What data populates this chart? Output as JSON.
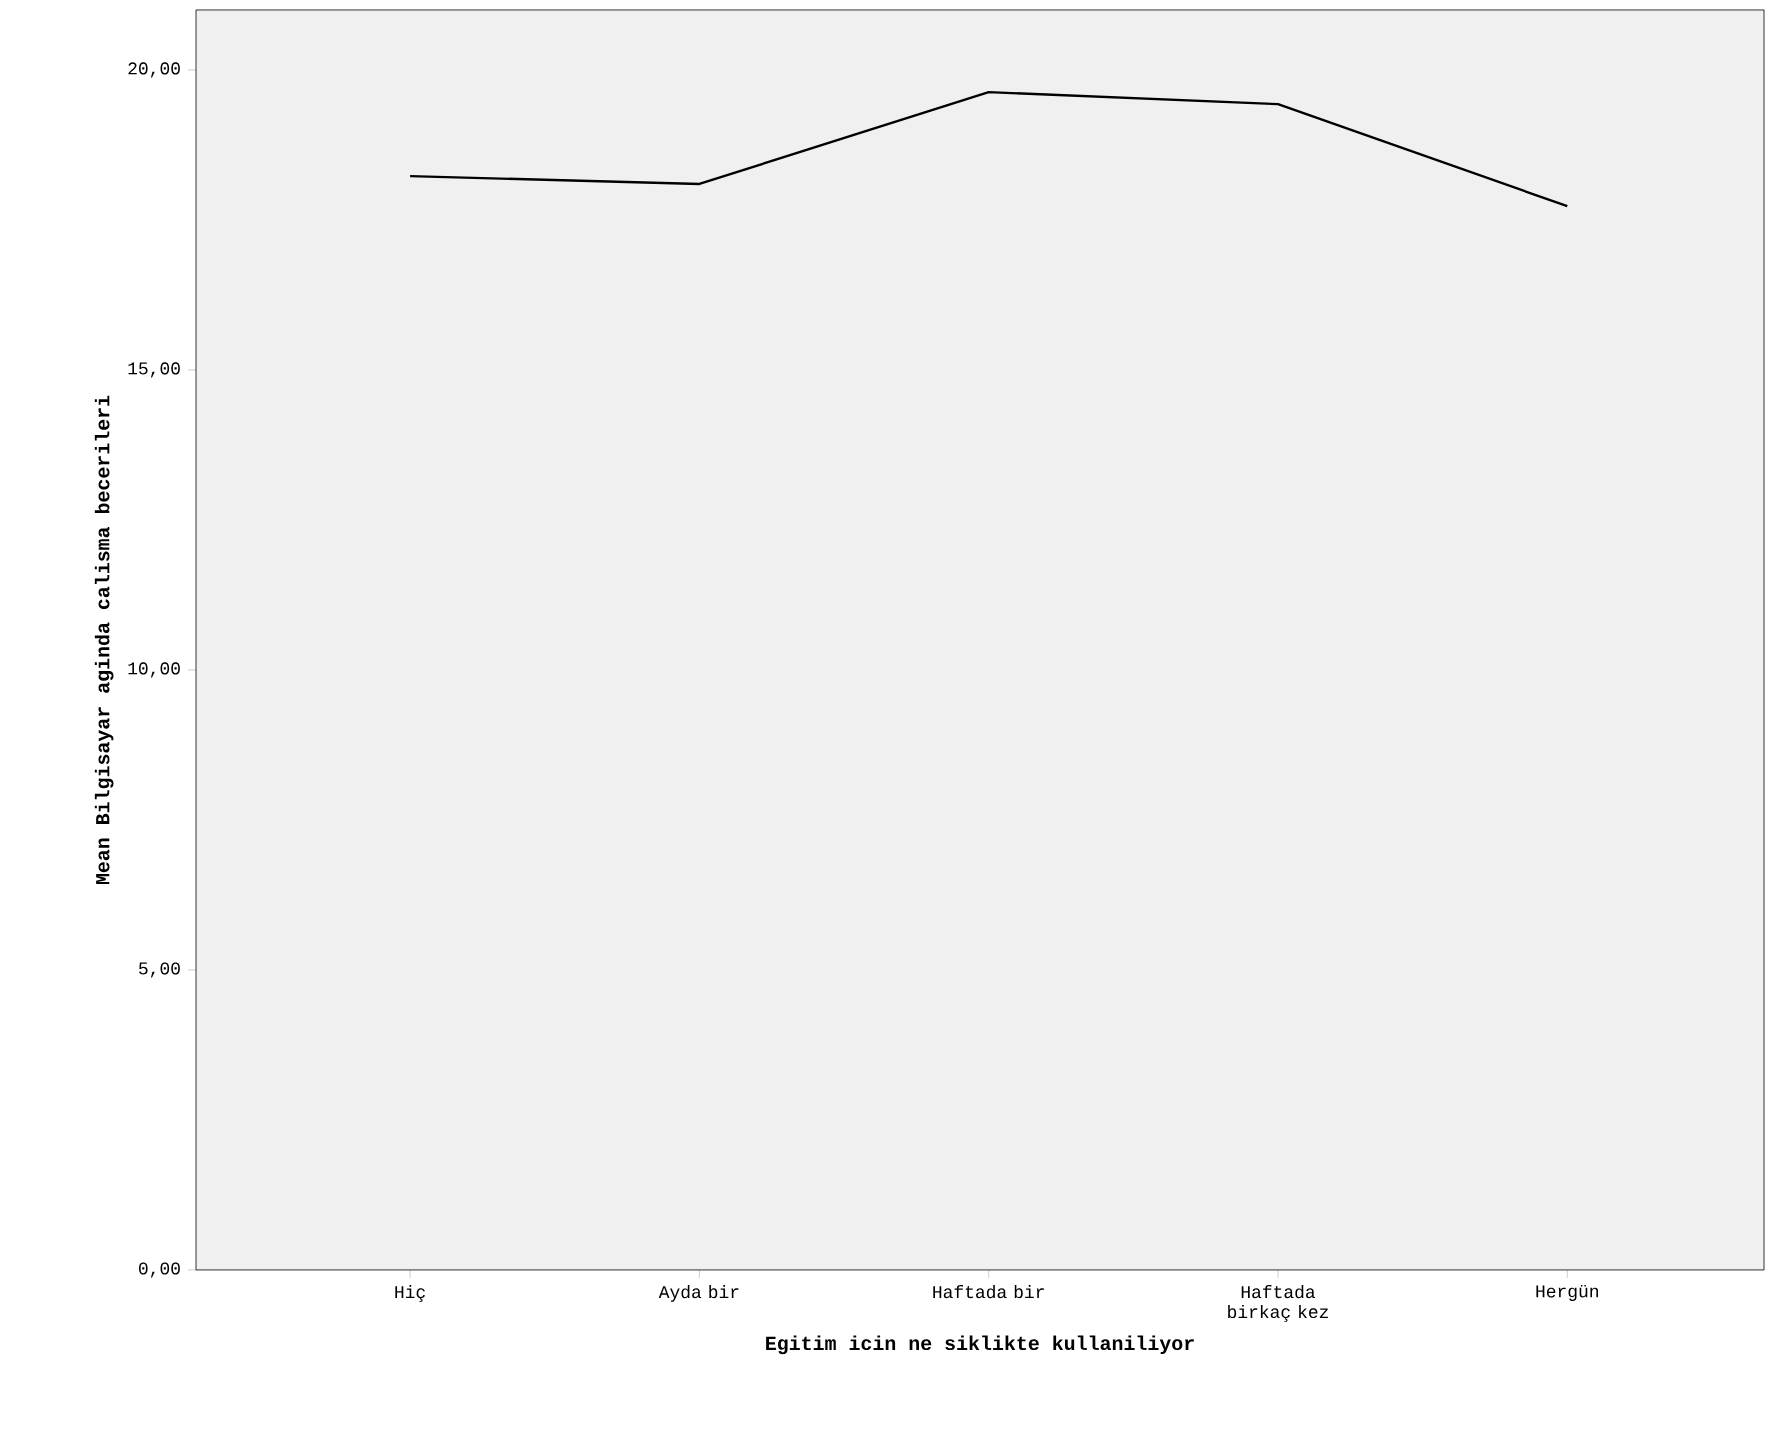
{
  "chart_data": {
    "type": "line",
    "xlabel": "Egitim icin ne siklikte kullaniliyor",
    "ylabel": "Mean Bilgisayar aginda calisma becerileri",
    "categories": [
      "Hiç",
      "Ayda bir",
      "Haftada bir",
      "Haftada birkaç kez",
      "Hergün"
    ],
    "series": [
      {
        "color": "#000000",
        "values": [
          18.23,
          18.1,
          19.63,
          19.43,
          17.73
        ]
      }
    ],
    "ylim": [
      0,
      21
    ],
    "yticks": [
      {
        "value": 0,
        "label": "0,00"
      },
      {
        "value": 5,
        "label": "5,00"
      },
      {
        "value": 10,
        "label": "10,00"
      },
      {
        "value": 15,
        "label": "15,00"
      },
      {
        "value": 20,
        "label": "20,00"
      }
    ],
    "grid": false,
    "marker": "none",
    "line_style": "solid"
  }
}
